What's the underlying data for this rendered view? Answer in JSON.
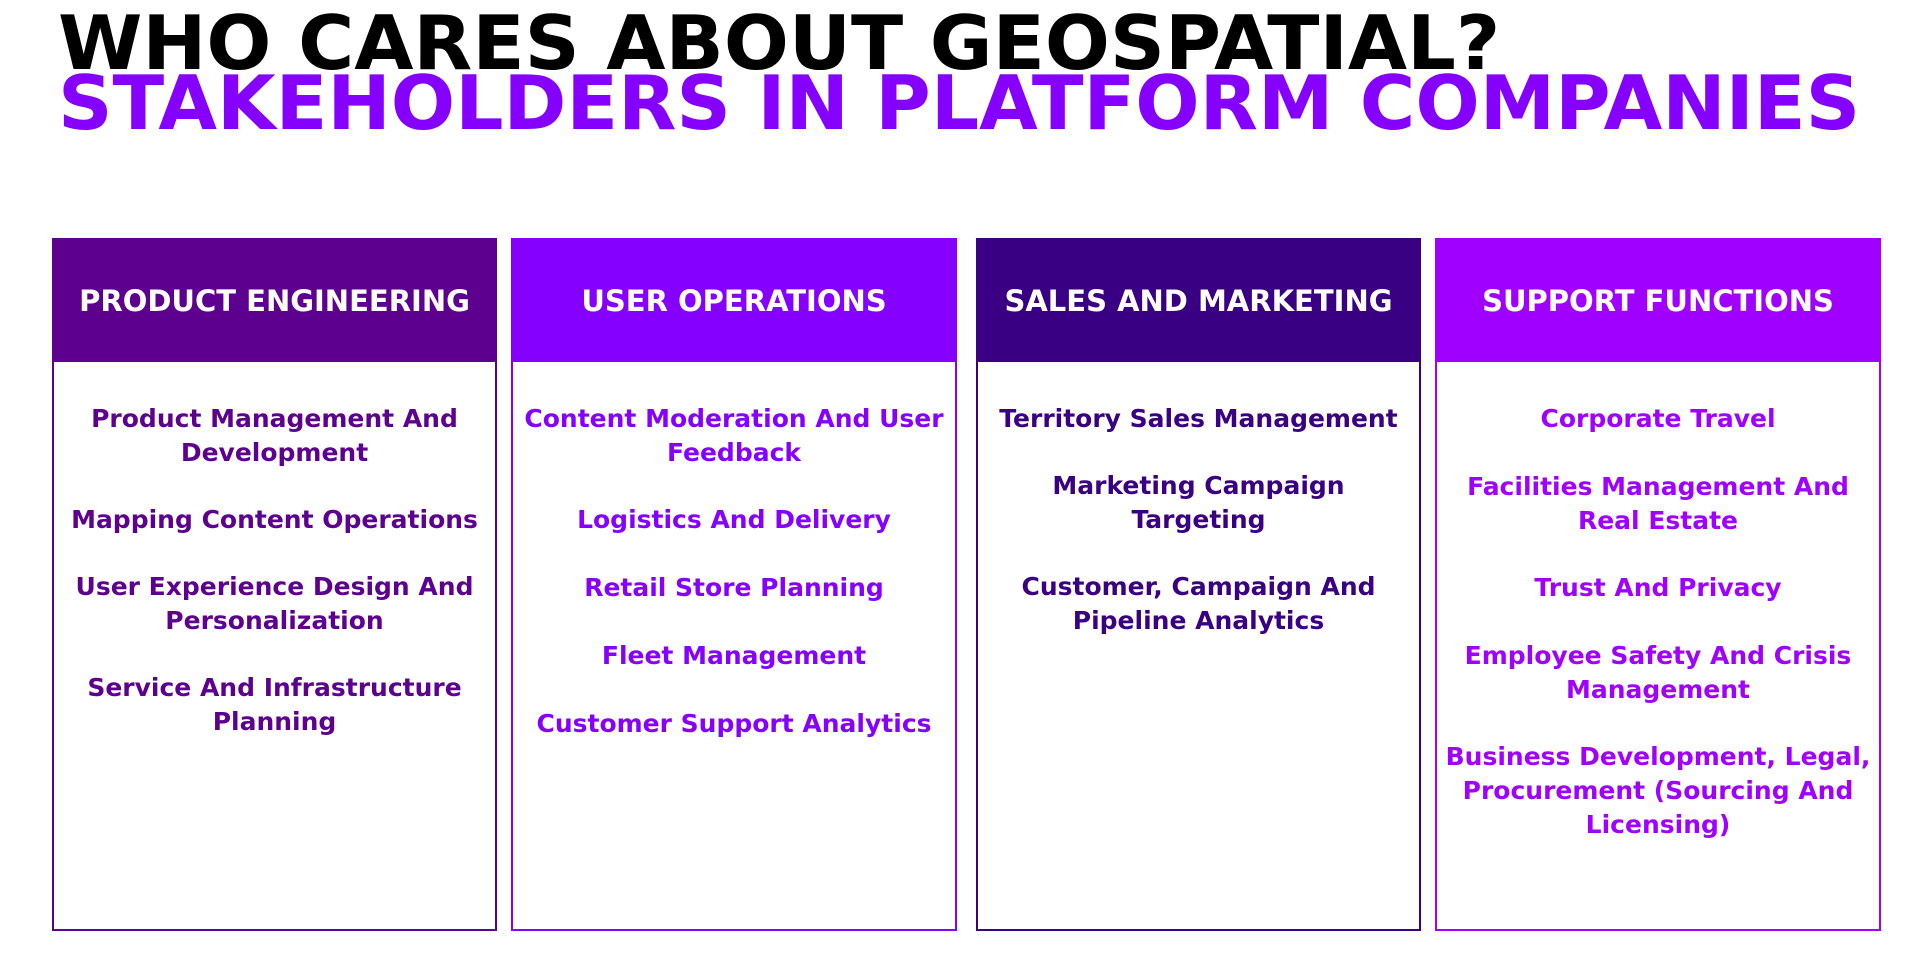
{
  "title_line1": "WHO CARES ABOUT GEOSPATIAL?",
  "title_line2": "STAKEHOLDERS IN PLATFORM COMPANIES",
  "colors": {
    "title_line1": "#000000",
    "title_line2": "#8500ff",
    "product_engineering": "#5d0090",
    "user_operations": "#8600ff",
    "sales_and_marketing": "#3a0083",
    "support_functions": "#a000ff"
  },
  "columns": [
    {
      "header": "Product Engineering",
      "items": [
        "Product Management And Development",
        "Mapping Content Operations",
        "User Experience Design And Personalization",
        "Service And Infrastructure Planning"
      ]
    },
    {
      "header": "User Operations",
      "items": [
        "Content Moderation And User Feedback",
        "Logistics And Delivery",
        "Retail Store Planning",
        "Fleet Management",
        "Customer Support Analytics"
      ]
    },
    {
      "header": "Sales And Marketing",
      "items": [
        "Territory Sales Management",
        "Marketing Campaign Targeting",
        "Customer, Campaign And Pipeline Analytics"
      ]
    },
    {
      "header": "Support Functions",
      "items": [
        "Corporate Travel",
        "Facilities Management And Real Estate",
        "Trust And Privacy",
        "Employee Safety And Crisis Management",
        "Business Development, Legal, Procurement (Sourcing And Licensing)"
      ]
    }
  ]
}
